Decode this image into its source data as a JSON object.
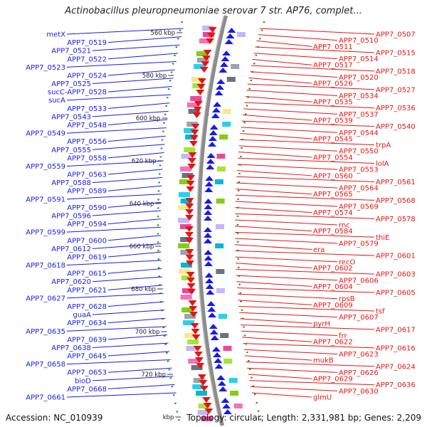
{
  "title": "Actinobacillus pleuropneumoniae serovar 7 str. AP76, complet...",
  "footer": {
    "accession": "Accession: NC_010939",
    "summary": "Topology: circular; Length: 2,331,981 bp; Genes: 2,209"
  },
  "colors": {
    "left_strand": "#1a1ae6",
    "right_strand": "#e61414",
    "tick": "#2e8b2e",
    "backbone": "#8c8c8c"
  },
  "scale_ticks": [
    {
      "label": "560 kbp"
    },
    {
      "label": "580 kbp"
    },
    {
      "label": "600 kbp"
    },
    {
      "label": "620 kbp"
    },
    {
      "label": "640 kbp"
    },
    {
      "label": "660 kbp"
    },
    {
      "label": "680 kbp"
    },
    {
      "label": "700 kbp"
    },
    {
      "label": "720 kbp"
    },
    {
      "label": "kbp"
    }
  ],
  "left_genes": [
    "metX",
    "APP7_0519",
    "APP7_0521",
    "APP7_0522",
    "APP7_0523",
    "APP7_0524",
    "APP7_0525",
    "sucC-APP7_0528",
    "sucA",
    "APP7_0533",
    "APP7_0543",
    "APP7_0548",
    "APP7_0549",
    "APP7_0556",
    "APP7_0555",
    "APP7_0558",
    "APP7_0559",
    "APP7_0563",
    "APP7_0588",
    "APP7_0589",
    "APP7_0591",
    "APP7_0590",
    "APP7_0596",
    "APP7_0594",
    "APP7_0599",
    "APP7_0600",
    "APP7_0612",
    "APP7_0619",
    "APP7_0618",
    "APP7_0615",
    "APP7_0620",
    "APP7_0621",
    "APP7_0627",
    "APP7_0628",
    "guaA",
    "APP7_0634",
    "APP7_0635",
    "APP7_0639",
    "APP7_0638",
    "APP7_0645",
    "APP7_0658",
    "APP7_0653",
    "bioD",
    "APP7_0668",
    "APP7_0661"
  ],
  "right_genes": [
    "APP7_0507",
    "APP7_0510",
    "APP7_0511",
    "APP7_0515",
    "APP7_0514",
    "APP7_0517",
    "APP7_0518",
    "APP7_0520",
    "APP7_0526",
    "APP7_0527",
    "APP7_0534",
    "APP7_0535",
    "APP7_0536",
    "APP7_0537",
    "APP7_0539",
    "APP7_0540",
    "APP7_0544",
    "APP7_0545",
    "trpA",
    "APP7_0550",
    "APP7_0554",
    "lolA",
    "APP7_0553",
    "APP7_0560",
    "APP7_0561",
    "APP7_0564",
    "APP7_0565",
    "APP7_0568",
    "APP7_0569",
    "APP7_0574",
    "APP7_0578",
    "rnc",
    "APP7_0584",
    "thiE",
    "APP7_0579",
    "era",
    "APP7_0601",
    "recO",
    "APP7_0602",
    "APP7_0603",
    "APP7_0606",
    "APP7_0604",
    "APP7_0605",
    "rpsB",
    "APP7_0609",
    "tsf",
    "APP7_0607",
    "pyrH",
    "APP7_0617",
    "frr",
    "APP7_0622",
    "APP7_0616",
    "APP7_0623",
    "mukB",
    "APP7_0624",
    "APP7_0626",
    "APP7_0629",
    "APP7_0636",
    "APP7_0630",
    "glmU"
  ]
}
